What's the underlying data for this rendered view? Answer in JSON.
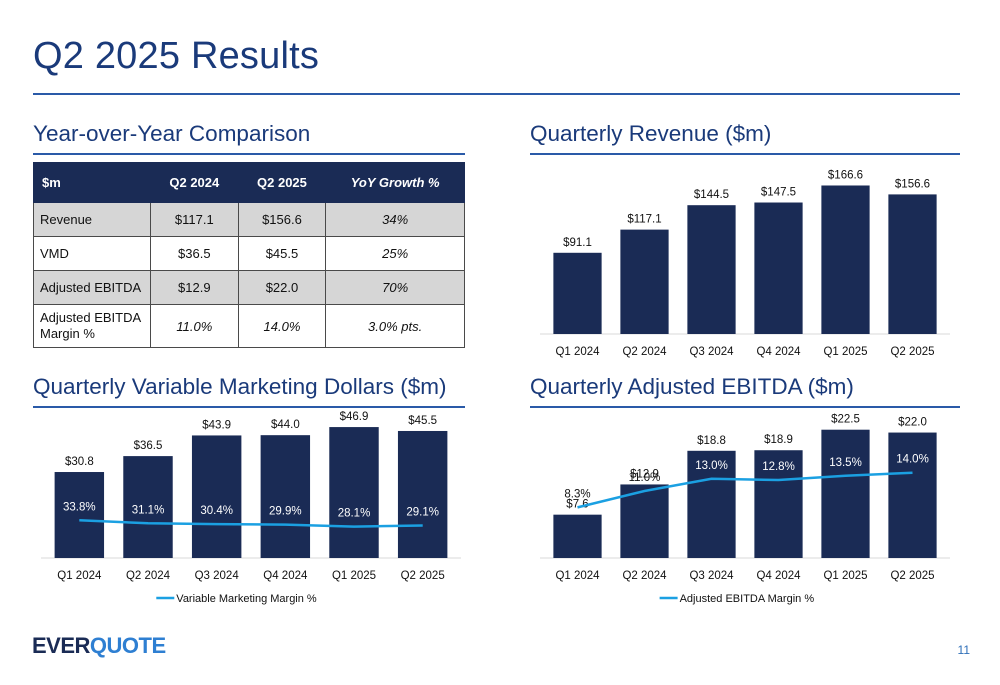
{
  "page": {
    "title": "Q2 2025 Results",
    "page_number": "11",
    "logo": {
      "part1": "EVER",
      "part2": "QUOTE"
    }
  },
  "colors": {
    "navy": "#1a2b55",
    "title_blue": "#1a3a7a",
    "line_blue": "#1ba0e2",
    "table_shade": "#d6d6d6"
  },
  "sections": {
    "yoy": "Year-over-Year Comparison",
    "revenue": "Quarterly Revenue ($m)",
    "vmd": "Quarterly Variable Marketing Dollars ($m)",
    "ebitda": "Quarterly Adjusted EBITDA ($m)"
  },
  "table": {
    "headers": [
      "$m",
      "Q2 2024",
      "Q2 2025",
      "YoY Growth %"
    ],
    "rows": [
      {
        "label": "Revenue",
        "q2_2024": "$117.1",
        "q2_2025": "$156.6",
        "growth": "34%"
      },
      {
        "label": "VMD",
        "q2_2024": "$36.5",
        "q2_2025": "$45.5",
        "growth": "25%"
      },
      {
        "label": "Adjusted EBITDA",
        "q2_2024": "$12.9",
        "q2_2025": "$22.0",
        "growth": "70%"
      },
      {
        "label": "Adjusted EBITDA Margin %",
        "q2_2024": "11.0%",
        "q2_2025": "14.0%",
        "growth": "3.0% pts."
      }
    ]
  },
  "chart_data": [
    {
      "type": "bar",
      "title": "Quarterly Revenue ($m)",
      "categories": [
        "Q1 2024",
        "Q2 2024",
        "Q3 2024",
        "Q4 2024",
        "Q1 2025",
        "Q2 2025"
      ],
      "values": [
        91.1,
        117.1,
        144.5,
        147.5,
        166.6,
        156.6
      ],
      "labels": [
        "$91.1",
        "$117.1",
        "$144.5",
        "$147.5",
        "$166.6",
        "$156.6"
      ],
      "ylim": [
        0,
        175
      ]
    },
    {
      "type": "bar",
      "title": "Quarterly Variable Marketing Dollars ($m)",
      "categories": [
        "Q1 2024",
        "Q2 2024",
        "Q3 2024",
        "Q4 2024",
        "Q1 2025",
        "Q2 2025"
      ],
      "values": [
        30.8,
        36.5,
        43.9,
        44.0,
        46.9,
        45.5
      ],
      "labels": [
        "$30.8",
        "$36.5",
        "$43.9",
        "$44.0",
        "$46.9",
        "$45.5"
      ],
      "ylim": [
        0,
        48
      ],
      "line": {
        "name": "Variable Marketing Margin %",
        "values": [
          33.8,
          31.1,
          30.4,
          29.9,
          28.1,
          29.1
        ],
        "labels": [
          "33.8%",
          "31.1%",
          "30.4%",
          "29.9%",
          "28.1%",
          "29.1%"
        ],
        "ylim": [
          0,
          120
        ]
      },
      "legend": "bottom"
    },
    {
      "type": "bar",
      "title": "Quarterly Adjusted EBITDA ($m)",
      "categories": [
        "Q1 2024",
        "Q2 2024",
        "Q3 2024",
        "Q4 2024",
        "Q1 2025",
        "Q2 2025"
      ],
      "values": [
        7.6,
        12.9,
        18.8,
        18.9,
        22.5,
        22.0
      ],
      "labels": [
        "$7.6",
        "$12.9",
        "$18.8",
        "$18.9",
        "$22.5",
        "$22.0"
      ],
      "ylim": [
        0,
        23.5
      ],
      "line": {
        "name": "Adjusted EBITDA Margin %",
        "values": [
          8.3,
          11.0,
          13.0,
          12.8,
          13.5,
          14.0
        ],
        "labels": [
          "8.3%",
          "11.0%",
          "13.0%",
          "12.8%",
          "13.5%",
          "14.0%"
        ],
        "ylim": [
          0,
          22
        ]
      },
      "legend": "bottom"
    }
  ]
}
